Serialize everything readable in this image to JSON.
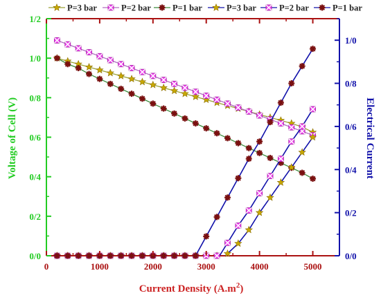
{
  "chart_data": {
    "type": "line",
    "xlabel": "Current Density (A.m",
    "xlabel_sup": "2",
    "xlabel_close": ")",
    "ylabel_left": "Voltage of Cell (V)",
    "ylabel_right": "Electrical Current",
    "xlim": [
      0,
      5500
    ],
    "ylim_left": [
      0,
      1.2
    ],
    "ylim_right": [
      0,
      1.1
    ],
    "x_ticks": [
      0,
      1000,
      2000,
      3000,
      4000,
      5000
    ],
    "y_left_ticks": [
      "0/0",
      "0/2",
      "0/4",
      "0/6",
      "0/8",
      "1/0",
      "1/2"
    ],
    "y_right_ticks": [
      "0/0",
      "0/2",
      "0/4",
      "0/6",
      "0/8",
      "1/0"
    ],
    "colors": {
      "left_axis": "#22cc22",
      "right_axis": "#1111aa",
      "top_axis": "#aa1111",
      "bottom_axis": "#aa1111",
      "axis_title_left": "#22cc22",
      "axis_title_right": "#1111aa",
      "axis_title_x": "#cc2222"
    },
    "x": [
      200,
      400,
      600,
      800,
      1000,
      1200,
      1400,
      1600,
      1800,
      2000,
      2200,
      2400,
      2600,
      2800,
      3000,
      3200,
      3400,
      3600,
      3800,
      4000,
      4200,
      4400,
      4600,
      4800,
      5000
    ],
    "series": [
      {
        "name": "P=3 bar",
        "axis": "left",
        "marker": "star",
        "line_color": "#9aa236",
        "marker_color": "#c8a800",
        "values": [
          1.0,
          0.985,
          0.97,
          0.955,
          0.94,
          0.925,
          0.91,
          0.895,
          0.88,
          0.865,
          0.85,
          0.835,
          0.82,
          0.805,
          0.79,
          0.775,
          0.76,
          0.745,
          0.73,
          0.715,
          0.7,
          0.685,
          0.67,
          0.652,
          0.625
        ]
      },
      {
        "name": "P=2 bar",
        "axis": "left",
        "marker": "square",
        "line_color": "#b06cc0",
        "marker_color": "#ee44ee",
        "values": [
          1.09,
          1.07,
          1.05,
          1.03,
          1.01,
          0.99,
          0.97,
          0.95,
          0.93,
          0.91,
          0.89,
          0.87,
          0.85,
          0.83,
          0.81,
          0.79,
          0.77,
          0.75,
          0.73,
          0.71,
          0.69,
          0.67,
          0.65,
          0.63,
          0.61
        ]
      },
      {
        "name": "P=1 bar",
        "axis": "left",
        "marker": "asterisk",
        "line_color": "#3a8a3a",
        "marker_color": "#7a1010",
        "values": [
          1.0,
          0.97,
          0.95,
          0.92,
          0.895,
          0.87,
          0.845,
          0.82,
          0.795,
          0.77,
          0.745,
          0.72,
          0.695,
          0.67,
          0.645,
          0.62,
          0.595,
          0.57,
          0.545,
          0.52,
          0.495,
          0.47,
          0.445,
          0.42,
          0.39
        ]
      },
      {
        "name": "P=3 bar",
        "axis": "right",
        "marker": "star",
        "line_color": "#1111aa",
        "marker_color": "#c8a800",
        "values": [
          0,
          0,
          0,
          0,
          0,
          0,
          0,
          0,
          0,
          0,
          0,
          0,
          0,
          0,
          0,
          0,
          0.01,
          0.057,
          0.12,
          0.2,
          0.27,
          0.34,
          0.41,
          0.48,
          0.55
        ]
      },
      {
        "name": "P=2 bar",
        "axis": "right",
        "marker": "square",
        "line_color": "#1111aa",
        "marker_color": "#ee44ee",
        "values": [
          0,
          0,
          0,
          0,
          0,
          0,
          0,
          0,
          0,
          0,
          0,
          0,
          0,
          0,
          0,
          0,
          0.06,
          0.14,
          0.21,
          0.29,
          0.37,
          0.45,
          0.53,
          0.6,
          0.68
        ]
      },
      {
        "name": "P=1 bar",
        "axis": "right",
        "marker": "asterisk",
        "line_color": "#1111aa",
        "marker_color": "#7a1010",
        "values": [
          0,
          0,
          0,
          0,
          0,
          0,
          0,
          0,
          0,
          0,
          0,
          0,
          0,
          0,
          0.09,
          0.18,
          0.27,
          0.36,
          0.45,
          0.53,
          0.62,
          0.71,
          0.8,
          0.88,
          0.96
        ]
      }
    ]
  }
}
